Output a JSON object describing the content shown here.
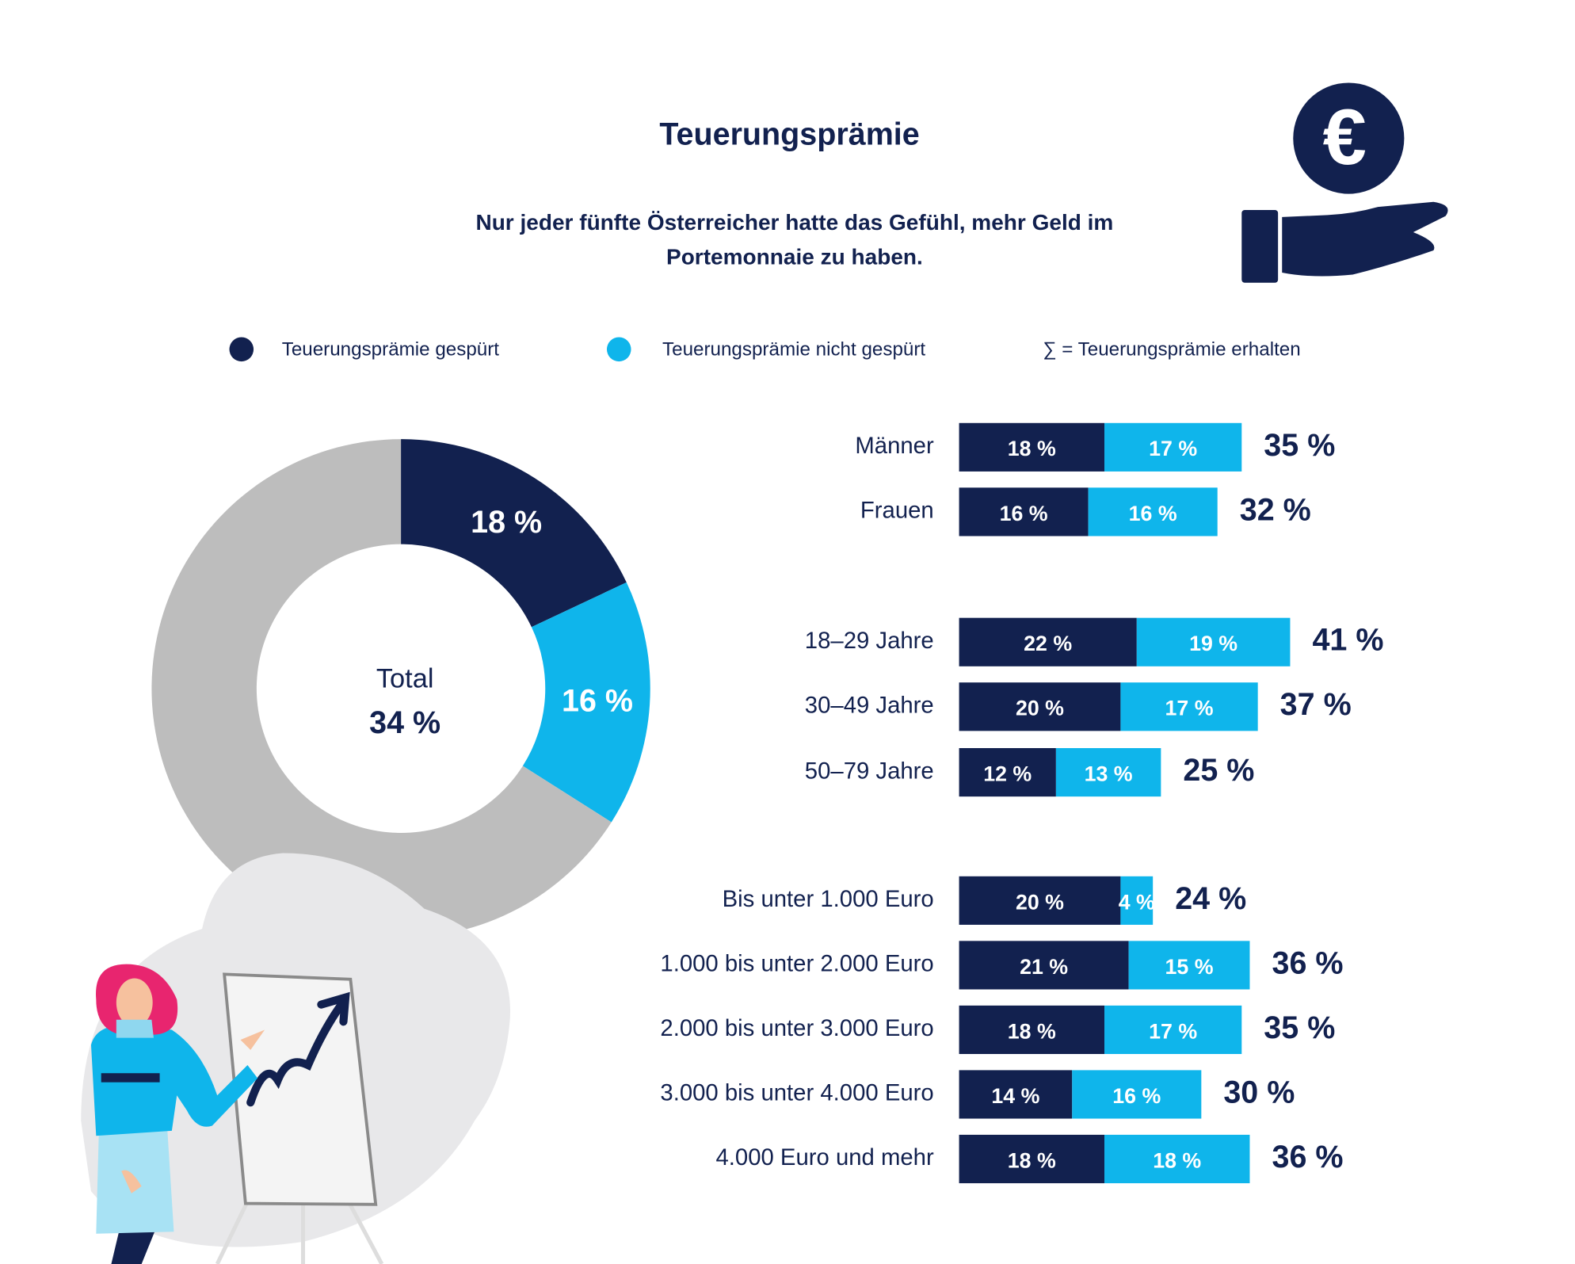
{
  "title": "Teuerungsprämie",
  "subtitle": [
    "Nur jeder fünfte Österreicher hatte das Gefühl, mehr Geld im",
    "Portemonnaie zu haben."
  ],
  "legend_note": "∑ = Teuerungsprämie erhalten",
  "chart_data": [
    {
      "type": "donut",
      "values": [
        18,
        16,
        66
      ],
      "value_labels": [
        "18 %",
        "16 %",
        null
      ],
      "colors": [
        "#12214f",
        "#0fb5eb",
        "#bdbdbd"
      ],
      "center_label": "Total",
      "total": 34,
      "total_label": "34 %"
    },
    {
      "type": "bar",
      "orientation": "horizontal",
      "stacked": true,
      "xlim": [
        0,
        50
      ],
      "categories": [
        "Männer",
        "Frauen"
      ],
      "series": [
        {
          "name": "Teuerungsprämie gespürt",
          "color": "#12214f",
          "values": [
            18,
            16
          ],
          "value_labels": [
            "18 %",
            "16 %"
          ]
        },
        {
          "name": "Teuerungsprämie nicht gespürt",
          "color": "#0fb5eb",
          "values": [
            17,
            16
          ],
          "value_labels": [
            "17 %",
            "16 %"
          ]
        }
      ],
      "totals": [
        35,
        32
      ],
      "total_labels": [
        "35 %",
        "32 %"
      ]
    },
    {
      "type": "bar",
      "orientation": "horizontal",
      "stacked": true,
      "xlim": [
        0,
        50
      ],
      "categories": [
        "18–29 Jahre",
        "30–49 Jahre",
        "50–79 Jahre"
      ],
      "series": [
        {
          "color": "#12214f",
          "values": [
            22,
            20,
            12
          ],
          "value_labels": [
            "22 %",
            "20 %",
            "12 %"
          ]
        },
        {
          "color": "#0fb5eb",
          "values": [
            19,
            17,
            13
          ],
          "value_labels": [
            "19 %",
            "17 %",
            "13 %"
          ]
        }
      ],
      "totals": [
        41,
        37,
        25
      ],
      "total_labels": [
        "41 %",
        "37 %",
        "25 %"
      ]
    },
    {
      "type": "bar",
      "orientation": "horizontal",
      "stacked": true,
      "xlim": [
        0,
        50
      ],
      "categories": [
        "Bis unter 1.000 Euro",
        "1.000 bis unter 2.000 Euro",
        "2.000 bis unter 3.000 Euro",
        "3.000 bis unter 4.000 Euro",
        "4.000 Euro und mehr"
      ],
      "series": [
        {
          "color": "#12214f",
          "values": [
            20,
            21,
            18,
            14,
            18
          ],
          "value_labels": [
            "20 %",
            "21 %",
            "18 %",
            "14 %",
            "18 %"
          ]
        },
        {
          "color": "#0fb5eb",
          "values": [
            4,
            15,
            17,
            16,
            18
          ],
          "value_labels": [
            "4 %",
            "15 %",
            "17 %",
            "16 %",
            "18 %"
          ]
        }
      ],
      "totals": [
        24,
        36,
        35,
        30,
        36
      ],
      "total_labels": [
        "24 %",
        "36 %",
        "35 %",
        "30 %",
        "36 %"
      ]
    }
  ]
}
